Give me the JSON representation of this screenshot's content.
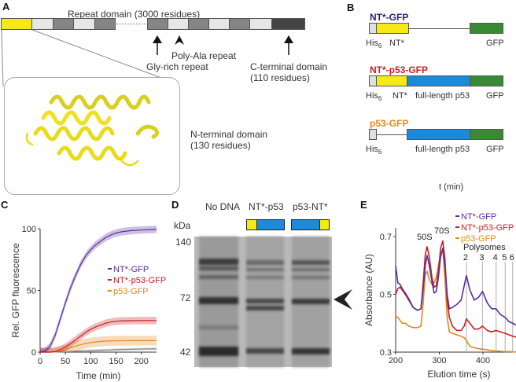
{
  "panels": {
    "A": {
      "label": "A",
      "repeat_domain_label": "Repeat domain (3000 residues)",
      "annotations": {
        "gly_rich": "Gly-rich repeat",
        "poly_ala": "Poly-Ala repeat",
        "c_terminal": "C-terminal domain",
        "c_terminal_size": "(110 residues)",
        "n_terminal": "N-terminal domain",
        "n_terminal_size": "(130 residues)"
      },
      "colors": {
        "nt": "#f6ea16",
        "light": "#e6e6e6",
        "mid": "#858585",
        "dark": "#444444"
      }
    },
    "B": {
      "label": "B",
      "constructs": [
        {
          "name": "NT*-GFP",
          "color": "#2b1f7a",
          "labels": {
            "his": "His",
            "his_sub": "6",
            "nt": "NT*",
            "p53": "",
            "gfp": "GFP"
          }
        },
        {
          "name": "NT*-p53-GFP",
          "color": "#c62026",
          "labels": {
            "his": "His",
            "his_sub": "6",
            "nt": "NT*",
            "p53": "full-length p53",
            "gfp": "GFP"
          }
        },
        {
          "name": "p53-GFP",
          "color": "#e08a1e",
          "labels": {
            "his": "His",
            "his_sub": "6",
            "nt": "",
            "p53": "full-length p53",
            "gfp": "GFP"
          }
        }
      ],
      "stray_label": "t (min)",
      "colors": {
        "his": "#e0e0e0",
        "nt": "#f6ea16",
        "p53": "#1c8ad8",
        "gfp": "#3a8a35"
      }
    },
    "D": {
      "label": "D",
      "kda_label": "kDa",
      "lanes": [
        "No DNA",
        "NT*-p53",
        "p53-NT*"
      ],
      "markers": [
        "140",
        "72",
        "42"
      ]
    }
  },
  "chart_data": [
    {
      "panel": "C",
      "type": "line",
      "title": "",
      "xlabel": "Time (min)",
      "ylabel": "Rel. GFP fluorescence",
      "xlim": [
        0,
        230
      ],
      "ylim": [
        0,
        100
      ],
      "xticks": [
        "0",
        "50",
        "100",
        "150",
        "200"
      ],
      "yticks": [
        "0",
        "50",
        "100"
      ],
      "legend": "center-right",
      "x": [
        0,
        10,
        20,
        30,
        40,
        50,
        60,
        70,
        80,
        90,
        100,
        110,
        120,
        130,
        140,
        150,
        160,
        180,
        200,
        230
      ],
      "series": [
        {
          "name": "NT*-GFP",
          "color": "#5b2d9c",
          "band": 3,
          "values": [
            0,
            1,
            5,
            14,
            27,
            40,
            52,
            62,
            71,
            78,
            83,
            87,
            90,
            93,
            95,
            96.5,
            97.5,
            98.5,
            99,
            99.5
          ]
        },
        {
          "name": "NT*-p53-GFP",
          "color": "#c62026",
          "band": 3,
          "values": [
            0,
            0,
            0,
            0.5,
            2,
            4,
            7,
            10,
            13,
            16,
            18.5,
            20.5,
            22,
            23.5,
            24.5,
            25,
            25.3,
            25.5,
            25.6,
            25.6
          ]
        },
        {
          "name": "p53-GFP",
          "color": "#e08a1e",
          "band": 4,
          "values": [
            0,
            0,
            0,
            0.3,
            1,
            2,
            3.5,
            5,
            6,
            7,
            7.8,
            8.3,
            8.7,
            9,
            9.1,
            9.2,
            9.2,
            9.3,
            9.3,
            9.3
          ]
        },
        {
          "name": "No DNA",
          "color": "#888888",
          "band": 1,
          "values": [
            0,
            0,
            0,
            0.1,
            0.2,
            0.3,
            0.5,
            0.7,
            0.9,
            1,
            1.2,
            1.4,
            1.5,
            1.7,
            1.8,
            2,
            2.1,
            2.3,
            2.5,
            2.7
          ]
        }
      ]
    },
    {
      "panel": "E",
      "type": "line",
      "title": "",
      "xlabel": "Elution time (s)",
      "ylabel": "Absorbance (AU)",
      "xlim": [
        200,
        480
      ],
      "ylim": [
        0.3,
        0.72
      ],
      "xticks": [
        "200",
        "300",
        "400"
      ],
      "yticks": [
        "0.3",
        "0.5",
        "0.7"
      ],
      "legend": "top-right",
      "peak_labels": {
        "p50": "50S",
        "p70": "70S",
        "polysomes": "Polysomes"
      },
      "polysome_lines": [
        {
          "label": "2",
          "x": 362
        },
        {
          "label": "3",
          "x": 399
        },
        {
          "label": "4",
          "x": 430
        },
        {
          "label": "5",
          "x": 451
        },
        {
          "label": "6",
          "x": 468
        }
      ],
      "x": [
        200,
        205,
        210,
        215,
        222,
        230,
        240,
        250,
        258,
        263,
        268,
        272,
        277,
        283,
        288,
        293,
        298,
        303,
        308,
        313,
        318,
        323,
        330,
        340,
        350,
        357,
        362,
        370,
        380,
        390,
        399,
        410,
        420,
        430,
        440,
        451,
        460,
        468,
        480
      ],
      "series": [
        {
          "name": "NT*-GFP",
          "color": "#5b2d9c",
          "values": [
            0.6,
            0.54,
            0.535,
            0.52,
            0.505,
            0.485,
            0.455,
            0.445,
            0.45,
            0.52,
            0.6,
            0.635,
            0.6,
            0.545,
            0.505,
            0.51,
            0.56,
            0.63,
            0.66,
            0.6,
            0.5,
            0.45,
            0.455,
            0.465,
            0.48,
            0.53,
            0.565,
            0.515,
            0.48,
            0.49,
            0.51,
            0.47,
            0.45,
            0.45,
            0.43,
            0.42,
            0.405,
            0.4,
            0.39
          ]
        },
        {
          "name": "NT*-p53-GFP",
          "color": "#c62026",
          "values": [
            0.5,
            0.52,
            0.525,
            0.515,
            0.5,
            0.48,
            0.455,
            0.445,
            0.45,
            0.54,
            0.64,
            0.665,
            0.63,
            0.56,
            0.525,
            0.53,
            0.58,
            0.66,
            0.685,
            0.62,
            0.48,
            0.42,
            0.39,
            0.375,
            0.375,
            0.39,
            0.415,
            0.4,
            0.38,
            0.38,
            0.39,
            0.375,
            0.37,
            0.375,
            0.37,
            0.365,
            0.36,
            0.355,
            0.35
          ]
        },
        {
          "name": "p53-GFP",
          "color": "#e08a1e",
          "values": [
            0.425,
            0.42,
            0.41,
            0.4,
            0.4,
            0.39,
            0.385,
            0.385,
            0.39,
            0.47,
            0.57,
            0.58,
            0.55,
            0.535,
            0.54,
            0.56,
            0.6,
            0.64,
            0.655,
            0.55,
            0.42,
            0.37,
            0.365,
            0.36,
            0.355,
            0.35,
            0.34,
            0.32,
            0.315,
            0.312,
            0.31,
            0.308,
            0.305,
            0.304,
            0.303,
            0.302,
            0.302,
            0.301,
            0.3
          ]
        }
      ]
    }
  ]
}
